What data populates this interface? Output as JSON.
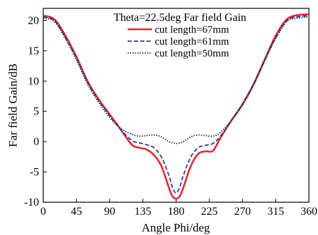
{
  "chart_data": {
    "type": "line",
    "xlabel": "Angle Phi/deg",
    "ylabel": "Far field Gain/dB",
    "legend_title": "Theta=22.5deg Far field Gain",
    "legend_position": "top-center",
    "xlim": [
      0,
      360
    ],
    "ylim": [
      -10,
      22
    ],
    "xticks": [
      "0",
      "45",
      "90",
      "135",
      "180",
      "225",
      "270",
      "315",
      "360"
    ],
    "yticks": [
      "-10",
      "-5",
      "0",
      "5",
      "10",
      "15",
      "20"
    ],
    "grid": false,
    "x": [
      0,
      15,
      30,
      45,
      60,
      75,
      90,
      105,
      120,
      130,
      140,
      150,
      160,
      170,
      175,
      180,
      185,
      190,
      200,
      210,
      220,
      230,
      240,
      255,
      270,
      285,
      300,
      315,
      330,
      345,
      360
    ],
    "series": [
      {
        "name": "cut length=67mm",
        "color": "#e8262e",
        "dash": "solid",
        "values": [
          20.8,
          20.2,
          17.5,
          14.0,
          10.0,
          7.0,
          4.5,
          2.0,
          -0.5,
          -1.0,
          -1.3,
          -2.2,
          -4.0,
          -7.5,
          -9.0,
          -9.4,
          -9.0,
          -7.5,
          -4.0,
          -2.0,
          -1.6,
          -1.5,
          0.6,
          3.5,
          6.2,
          9.5,
          13.5,
          17.5,
          20.2,
          20.9,
          21.0
        ]
      },
      {
        "name": "cut length=61mm",
        "color": "#2b3a9e",
        "dash": "dashed",
        "values": [
          20.6,
          20.0,
          17.2,
          13.8,
          9.8,
          6.8,
          4.3,
          2.0,
          0.2,
          -0.2,
          -0.5,
          -1.0,
          -2.5,
          -5.5,
          -7.5,
          -8.5,
          -7.5,
          -5.5,
          -2.5,
          -1.0,
          -0.6,
          -0.3,
          0.9,
          3.5,
          6.2,
          9.5,
          13.5,
          17.2,
          20.0,
          20.6,
          20.8
        ]
      },
      {
        "name": "cut length=50mm",
        "color": "#222222",
        "dash": "dotted",
        "values": [
          20.4,
          19.8,
          17.0,
          13.5,
          9.5,
          6.5,
          4.0,
          2.2,
          1.2,
          0.9,
          1.0,
          1.1,
          0.8,
          0.0,
          -0.2,
          -0.3,
          -0.2,
          0.0,
          0.8,
          1.1,
          1.0,
          0.9,
          1.5,
          3.5,
          6.0,
          9.3,
          13.3,
          17.0,
          19.8,
          20.4,
          20.6
        ]
      }
    ]
  }
}
